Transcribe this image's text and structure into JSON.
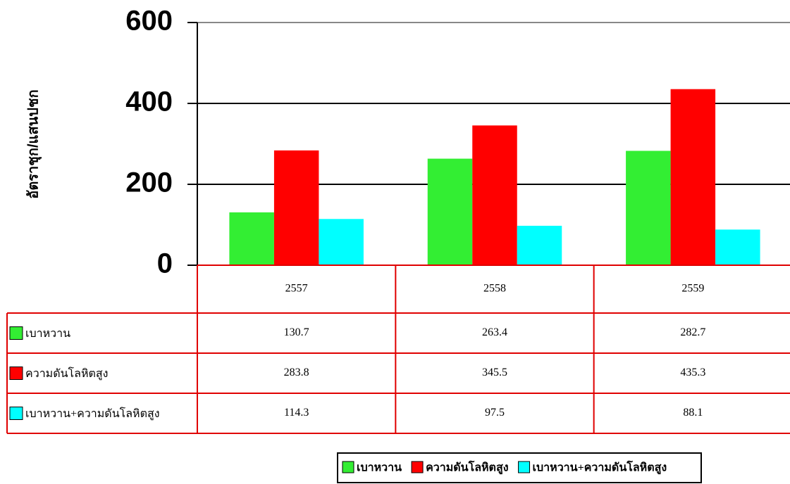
{
  "chart_data": {
    "type": "bar",
    "y_label": "อัตราชุก/แสนปชก",
    "categories": [
      "2557",
      "2558",
      "2559"
    ],
    "series": [
      {
        "name": "เบาหวาน",
        "color": "#33ee33",
        "values": [
          130.7,
          263.4,
          282.7
        ]
      },
      {
        "name": "ความดันโลหิตสูง",
        "color": "#ff0000",
        "values": [
          283.8,
          345.5,
          435.3
        ]
      },
      {
        "name": "เบาหวาน+ความดันโลหิตสูง",
        "color": "#00ffff",
        "values": [
          114.3,
          97.5,
          88.1
        ]
      }
    ],
    "ylim": [
      0,
      600
    ],
    "yticks": [
      0,
      200,
      400,
      600
    ],
    "grid": true
  }
}
